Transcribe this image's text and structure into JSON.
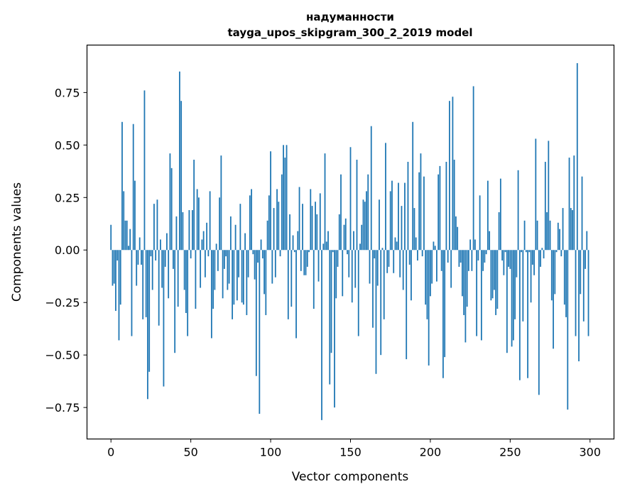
{
  "chart_data": {
    "type": "bar",
    "title": "надуманности",
    "subtitle": "tayga_upos_skipgram_300_2_2019 model",
    "xlabel": "Vector components",
    "ylabel": "Components values",
    "xlim": [
      -15,
      315
    ],
    "ylim": [
      -0.9,
      0.976
    ],
    "xticks": [
      0,
      50,
      100,
      150,
      200,
      250,
      300
    ],
    "yticks": [
      -0.75,
      -0.5,
      -0.25,
      0.0,
      0.25,
      0.5,
      0.75
    ],
    "ytick_labels": [
      "−0.75",
      "−0.50",
      "−0.25",
      "0.00",
      "0.25",
      "0.50",
      "0.75"
    ],
    "grid": false,
    "bar_color": "#1f77b4",
    "values": [
      0.12,
      -0.17,
      -0.16,
      -0.29,
      -0.05,
      -0.43,
      -0.26,
      0.61,
      0.28,
      0.14,
      0.14,
      0.02,
      0.1,
      -0.41,
      0.6,
      0.33,
      -0.17,
      -0.07,
      0.06,
      -0.07,
      -0.33,
      0.76,
      -0.32,
      -0.71,
      -0.58,
      -0.03,
      -0.19,
      0.22,
      -0.05,
      0.24,
      -0.36,
      0.05,
      -0.18,
      -0.65,
      -0.08,
      0.08,
      -0.23,
      0.46,
      0.39,
      -0.09,
      -0.49,
      0.16,
      -0.27,
      0.85,
      0.71,
      0.18,
      -0.19,
      -0.3,
      -0.41,
      0.19,
      -0.04,
      0.19,
      0.43,
      -0.28,
      0.29,
      0.25,
      -0.18,
      0.05,
      0.09,
      -0.13,
      0.13,
      -0.03,
      0.28,
      -0.42,
      -0.28,
      -0.19,
      0.03,
      -0.1,
      0.25,
      0.45,
      -0.23,
      -0.09,
      -0.03,
      -0.19,
      -0.16,
      0.16,
      -0.33,
      -0.26,
      0.12,
      -0.24,
      -0.13,
      0.22,
      -0.25,
      -0.26,
      0.08,
      -0.31,
      -0.13,
      0.26,
      0.29,
      -0.02,
      -0.14,
      -0.6,
      -0.06,
      -0.78,
      0.05,
      -0.04,
      -0.21,
      -0.31,
      0.14,
      0.26,
      0.47,
      -0.16,
      0.2,
      -0.13,
      0.29,
      0.23,
      -0.03,
      0.36,
      0.5,
      0.44,
      0.5,
      -0.33,
      0.17,
      -0.27,
      0.07,
      -0.01,
      -0.42,
      0.09,
      0.3,
      -0.1,
      0.22,
      -0.12,
      -0.12,
      -0.08,
      -0.01,
      0.29,
      0.21,
      -0.28,
      0.23,
      0.17,
      -0.15,
      0.27,
      -0.81,
      0.03,
      0.46,
      0.04,
      0.09,
      -0.64,
      -0.49,
      -0.01,
      -0.75,
      -0.23,
      -0.08,
      0.17,
      0.36,
      -0.22,
      0.12,
      0.15,
      -0.02,
      -0.13,
      0.49,
      -0.25,
      0.09,
      -0.18,
      0.43,
      -0.41,
      0.03,
      0.12,
      0.24,
      0.23,
      0.28,
      0.36,
      -0.16,
      0.59,
      -0.37,
      -0.04,
      -0.59,
      -0.17,
      0.24,
      -0.5,
      0.01,
      -0.33,
      0.51,
      -0.11,
      -0.08,
      0.28,
      0.33,
      -0.11,
      0.06,
      0.04,
      0.32,
      -0.13,
      0.21,
      -0.19,
      0.32,
      -0.52,
      0.42,
      -0.07,
      -0.24,
      0.61,
      0.2,
      0.06,
      -0.05,
      0.37,
      0.46,
      -0.03,
      0.35,
      -0.26,
      -0.33,
      -0.55,
      -0.22,
      -0.16,
      0.04,
      0.02,
      -0.15,
      0.36,
      0.4,
      -0.1,
      -0.61,
      -0.51,
      0.42,
      -0.06,
      0.71,
      -0.18,
      0.73,
      0.43,
      0.16,
      0.11,
      -0.08,
      -0.06,
      -0.22,
      -0.31,
      -0.44,
      -0.27,
      -0.1,
      0.05,
      -0.1,
      0.78,
      0.05,
      -0.41,
      -0.05,
      0.26,
      -0.43,
      -0.1,
      -0.06,
      -0.02,
      0.33,
      0.09,
      -0.24,
      -0.23,
      -0.19,
      -0.31,
      -0.28,
      0.18,
      0.34,
      -0.05,
      -0.12,
      -0.01,
      -0.49,
      -0.08,
      -0.09,
      -0.46,
      -0.43,
      -0.33,
      -0.13,
      0.38,
      -0.62,
      -0.01,
      -0.34,
      0.14,
      -0.01,
      -0.61,
      -0.01,
      -0.25,
      -0.07,
      -0.12,
      0.53,
      0.14,
      -0.69,
      -0.08,
      0.01,
      -0.04,
      0.42,
      0.18,
      0.52,
      0.14,
      -0.24,
      -0.47,
      -0.21,
      -0.01,
      0.13,
      0.1,
      -0.03,
      0.2,
      -0.26,
      -0.32,
      -0.76,
      0.44,
      0.2,
      0.19,
      0.45,
      -0.41,
      0.89,
      -0.53,
      -0.21,
      0.35,
      -0.34,
      -0.09,
      0.09,
      -0.41
    ]
  }
}
